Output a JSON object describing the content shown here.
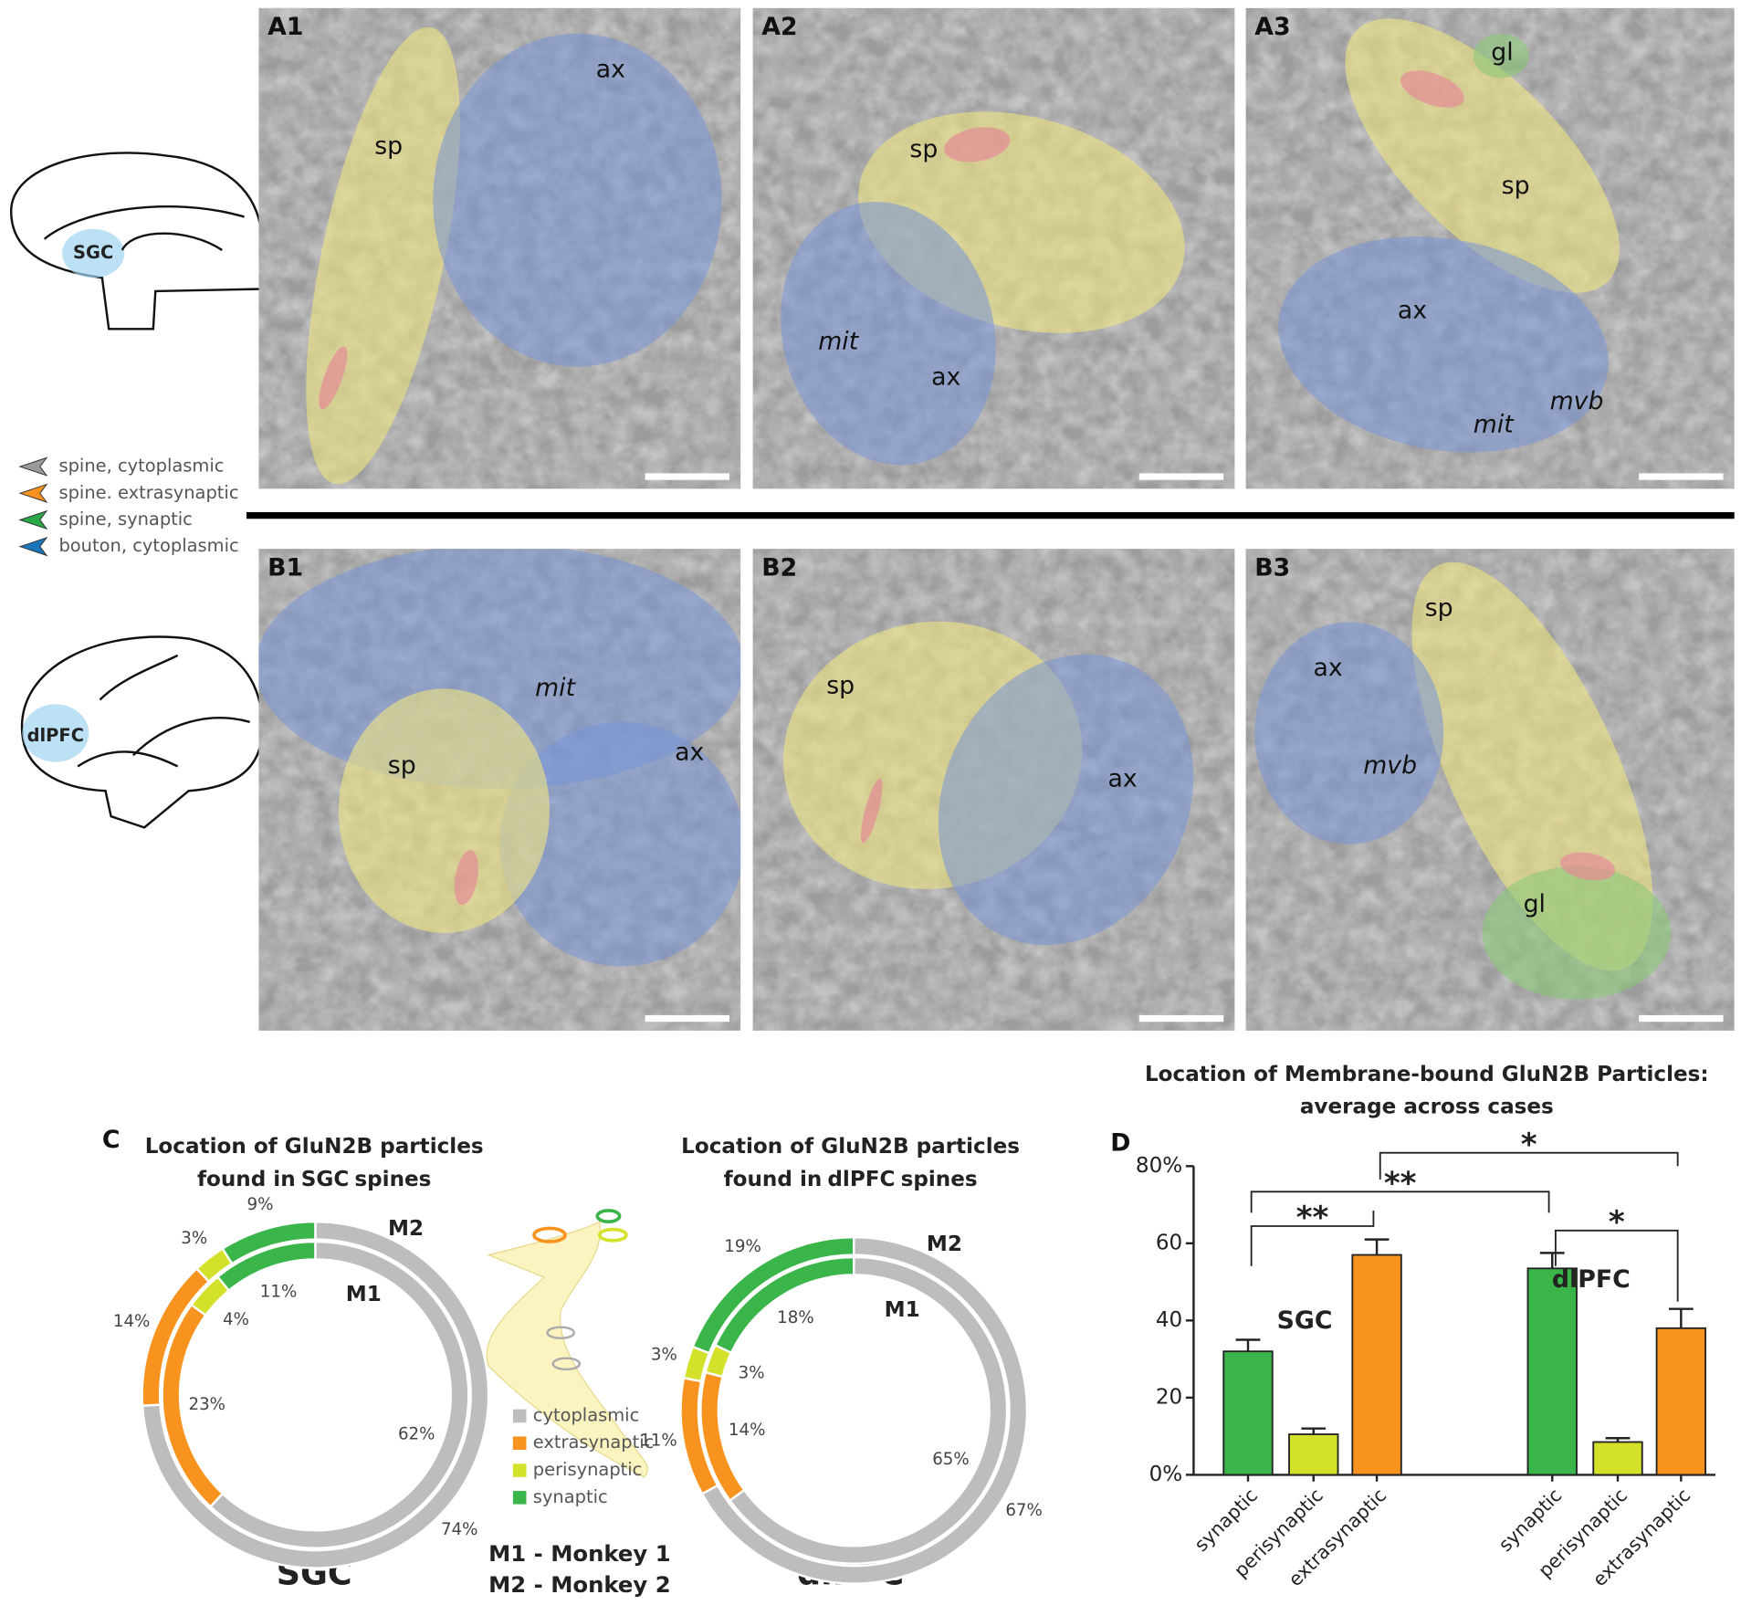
{
  "panels": [
    {
      "label": "A1",
      "annotations": [
        "sp",
        "ax"
      ]
    },
    {
      "label": "A2",
      "annotations": [
        "sp",
        "mit",
        "ax"
      ]
    },
    {
      "label": "A3",
      "annotations": [
        "gl",
        "sp",
        "ax",
        "mit",
        "mvb"
      ]
    },
    {
      "label": "B1",
      "annotations": [
        "mit",
        "sp",
        "ax"
      ]
    },
    {
      "label": "B2",
      "annotations": [
        "sp",
        "ax"
      ]
    },
    {
      "label": "B3",
      "annotations": [
        "sp",
        "ax",
        "mvb",
        "gl"
      ]
    }
  ],
  "arrow_legend": [
    {
      "label": "spine, cytoplasmic",
      "color": "#9a9a9a"
    },
    {
      "label": "spine. extrasynaptic",
      "color": "#f7931e"
    },
    {
      "label": "spine, synaptic",
      "color": "#2aa84a"
    },
    {
      "label": "bouton, cytoplasmic",
      "color": "#1a75bb"
    }
  ],
  "brain_labels": [
    "SGC",
    "dlPFC"
  ],
  "panel_C": "C",
  "panel_D": "D",
  "pie_legend": {
    "categories": [
      "cytoplasmic",
      "extrasynaptic",
      "perisynaptic",
      "synaptic"
    ],
    "colors": [
      "#bdbdbd",
      "#f7931e",
      "#d4e12a",
      "#3ab54a"
    ]
  },
  "monkey_legend": [
    "M1 - Monkey 1",
    "M2 - Monkey 2"
  ],
  "chart_data": [
    {
      "type": "donut",
      "title": [
        "Location of GluN2B particles",
        "found in",
        "SGC",
        "spines"
      ],
      "label": "SGC",
      "categories": [
        "cytoplasmic",
        "extrasynaptic",
        "perisynaptic",
        "synaptic"
      ],
      "colors": [
        "#bdbdbd",
        "#f7931e",
        "#d4e12a",
        "#3ab54a"
      ],
      "series": [
        {
          "name": "M1",
          "values": [
            62,
            23,
            4,
            11
          ],
          "value_labels": [
            "62%",
            "23%",
            "4%",
            "11%"
          ]
        },
        {
          "name": "M2",
          "values": [
            74,
            14,
            3,
            9
          ],
          "value_labels": [
            "74%",
            "14%",
            "3%",
            "9%"
          ]
        }
      ]
    },
    {
      "type": "donut",
      "title": [
        "Location of GluN2B particles",
        "found in",
        "dlPFC",
        "spines"
      ],
      "label": "dlPFC",
      "categories": [
        "cytoplasmic",
        "extrasynaptic",
        "perisynaptic",
        "synaptic"
      ],
      "colors": [
        "#bdbdbd",
        "#f7931e",
        "#d4e12a",
        "#3ab54a"
      ],
      "series": [
        {
          "name": "M1",
          "values": [
            65,
            14,
            3,
            18
          ],
          "value_labels": [
            "65%",
            "14%",
            "3%",
            "18%"
          ]
        },
        {
          "name": "M2",
          "values": [
            67,
            11,
            3,
            19
          ],
          "value_labels": [
            "67%",
            "11%",
            "3%",
            "19%"
          ]
        }
      ]
    },
    {
      "type": "bar",
      "title": [
        "Location of Membrane-bound GluN2B Particles:",
        "average across cases"
      ],
      "categories": [
        "synaptic",
        "perisynaptic",
        "extrasynaptic",
        "synaptic",
        "perisynaptic",
        "extrasynaptic"
      ],
      "values": [
        32,
        10.5,
        57,
        53.5,
        8.5,
        38
      ],
      "errors": [
        3,
        1.5,
        4,
        4,
        1,
        5
      ],
      "colors": [
        "#3ab54a",
        "#d4e12a",
        "#f7931e",
        "#3ab54a",
        "#d4e12a",
        "#f7931e"
      ],
      "groups": [
        "SGC",
        "dlPFC"
      ],
      "ylim": [
        0,
        80
      ],
      "yticks": [
        {
          "value": 0,
          "label": "0%"
        },
        20,
        40,
        60,
        {
          "value": 80,
          "label": "80%"
        }
      ],
      "significance": [
        {
          "label": "**",
          "from": 0,
          "to": 2
        },
        {
          "label": "**",
          "from": 0,
          "to": 3
        },
        {
          "label": "*",
          "from": 2,
          "to": 5
        },
        {
          "label": "*",
          "from": 3,
          "to": 5
        }
      ]
    }
  ]
}
